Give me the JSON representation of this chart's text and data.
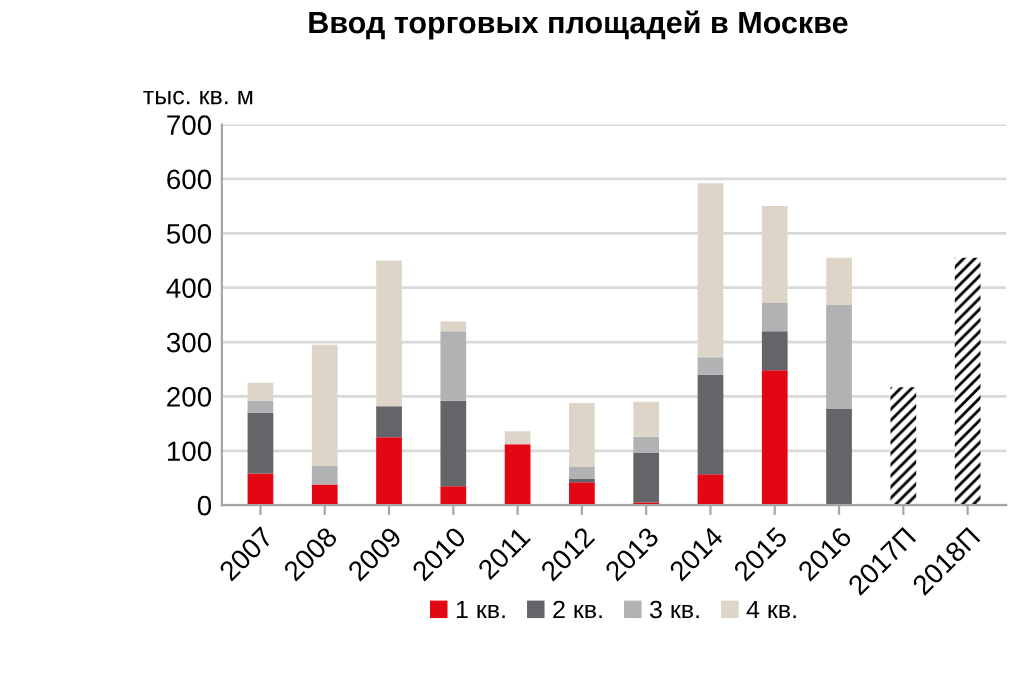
{
  "chart_data": {
    "type": "bar",
    "title": "Ввод торговых площадей в Москве",
    "ylabel": "тыс. кв. м",
    "categories": [
      "2007",
      "2008",
      "2009",
      "2010",
      "2011",
      "2012",
      "2013",
      "2014",
      "2015",
      "2016",
      "2017П",
      "2018П"
    ],
    "stacked": true,
    "series": [
      {
        "name": "1 кв.",
        "color": "#e30613",
        "values": [
          58,
          38,
          125,
          35,
          112,
          42,
          5,
          57,
          248,
          0,
          null,
          null
        ]
      },
      {
        "name": "2 кв.",
        "color": "#646569",
        "values": [
          112,
          0,
          57,
          157,
          0,
          6,
          92,
          183,
          72,
          178,
          null,
          null
        ]
      },
      {
        "name": "3 кв.",
        "color": "#b1b2b4",
        "values": [
          22,
          34,
          0,
          128,
          0,
          22,
          29,
          32,
          52,
          190,
          null,
          null
        ]
      },
      {
        "name": "4 кв.",
        "color": "#ddd6c8",
        "values": [
          33,
          223,
          268,
          18,
          24,
          118,
          64,
          320,
          178,
          87,
          null,
          null
        ]
      },
      {
        "color": "#000000",
        "values": [
          null,
          null,
          null,
          null,
          null,
          null,
          null,
          null,
          null,
          null,
          217,
          455
        ]
      }
    ],
    "ylim": [
      0,
      700
    ],
    "yticks": [
      0,
      100,
      200,
      300,
      400,
      500,
      600,
      700
    ],
    "grid": "y",
    "legend": "bottom"
  }
}
